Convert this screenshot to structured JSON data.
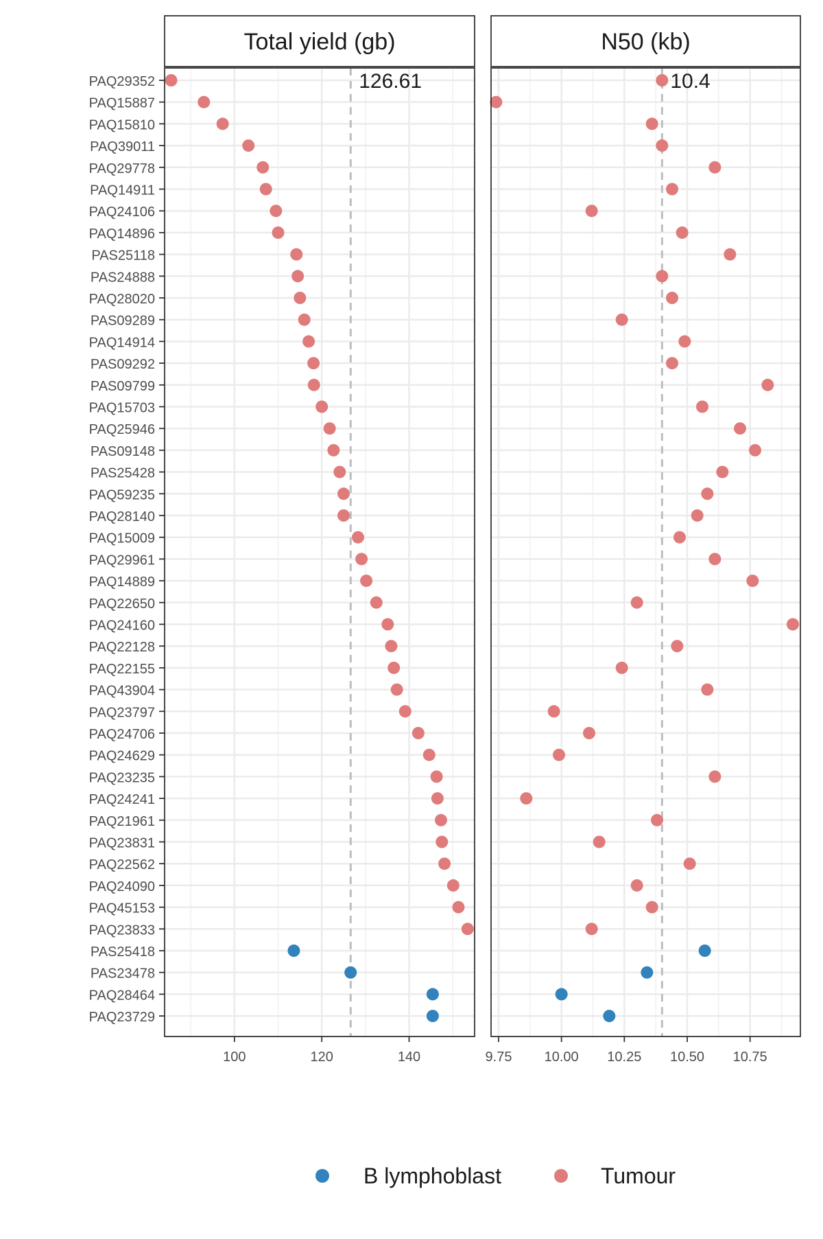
{
  "chart_data": {
    "type": "scatter",
    "samples": [
      "PAQ29352",
      "PAQ15887",
      "PAQ15810",
      "PAQ39011",
      "PAQ29778",
      "PAQ14911",
      "PAQ24106",
      "PAQ14896",
      "PAS25118",
      "PAS24888",
      "PAQ28020",
      "PAS09289",
      "PAQ14914",
      "PAS09292",
      "PAS09799",
      "PAQ15703",
      "PAQ25946",
      "PAS09148",
      "PAS25428",
      "PAQ59235",
      "PAQ28140",
      "PAQ15009",
      "PAQ29961",
      "PAQ14889",
      "PAQ22650",
      "PAQ24160",
      "PAQ22128",
      "PAQ22155",
      "PAQ43904",
      "PAQ23797",
      "PAQ24706",
      "PAQ24629",
      "PAQ23235",
      "PAQ24241",
      "PAQ21961",
      "PAQ23831",
      "PAQ22562",
      "PAQ24090",
      "PAQ45153",
      "PAQ23833",
      "PAS25418",
      "PAS23478",
      "PAQ28464",
      "PAQ23729"
    ],
    "groups": [
      "Tumour",
      "Tumour",
      "Tumour",
      "Tumour",
      "Tumour",
      "Tumour",
      "Tumour",
      "Tumour",
      "Tumour",
      "Tumour",
      "Tumour",
      "Tumour",
      "Tumour",
      "Tumour",
      "Tumour",
      "Tumour",
      "Tumour",
      "Tumour",
      "Tumour",
      "Tumour",
      "Tumour",
      "Tumour",
      "Tumour",
      "Tumour",
      "Tumour",
      "Tumour",
      "Tumour",
      "Tumour",
      "Tumour",
      "Tumour",
      "Tumour",
      "Tumour",
      "Tumour",
      "Tumour",
      "Tumour",
      "Tumour",
      "Tumour",
      "Tumour",
      "Tumour",
      "Tumour",
      "B lymphoblast",
      "B lymphoblast",
      "B lymphoblast",
      "B lymphoblast"
    ],
    "legend": {
      "position": "bottom",
      "entries": [
        {
          "label": "B lymphoblast",
          "color": "#3182bd"
        },
        {
          "label": "Tumour",
          "color": "#e07b7b"
        }
      ]
    },
    "panels": [
      {
        "strip": "Total yield (gb)",
        "xlim": [
          84,
          155
        ],
        "xticks": [
          100,
          120,
          140
        ],
        "xtick_labels": [
          "100",
          "120",
          "140"
        ],
        "reference_value": 126.61,
        "reference_label": "126.61",
        "values": [
          85.5,
          93,
          97.3,
          103.2,
          106.5,
          107.2,
          109.5,
          110,
          114.2,
          114.5,
          115,
          116,
          117,
          118.1,
          118.2,
          120,
          121.8,
          122.7,
          124.1,
          125,
          125,
          128.3,
          129.1,
          130.2,
          132.5,
          135.1,
          135.9,
          136.5,
          137.2,
          139.1,
          142.1,
          144.6,
          146.3,
          146.5,
          147.3,
          147.5,
          148.1,
          150.1,
          151.3,
          153.4,
          113.6,
          126.6,
          145.4,
          145.4
        ]
      },
      {
        "strip": "N50 (kb)",
        "xlim": [
          9.72,
          10.95
        ],
        "xticks": [
          9.75,
          10.0,
          10.25,
          10.5,
          10.75
        ],
        "xtick_labels": [
          "9.75",
          "10.00",
          "10.25",
          "10.50",
          "10.75"
        ],
        "reference_value": 10.4,
        "reference_label": "10.4",
        "values": [
          10.4,
          9.74,
          10.36,
          10.4,
          10.61,
          10.44,
          10.12,
          10.48,
          10.67,
          10.4,
          10.44,
          10.24,
          10.49,
          10.44,
          10.82,
          10.56,
          10.71,
          10.77,
          10.64,
          10.58,
          10.54,
          10.47,
          10.61,
          10.76,
          10.3,
          10.92,
          10.46,
          10.24,
          10.58,
          9.97,
          10.11,
          9.99,
          10.61,
          9.86,
          10.38,
          10.15,
          10.51,
          10.3,
          10.36,
          10.12,
          10.57,
          10.34,
          10.0,
          10.19
        ]
      }
    ]
  }
}
